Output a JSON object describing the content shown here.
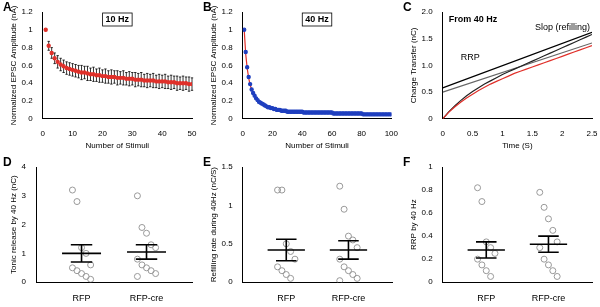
{
  "chart_data": [
    {
      "panel": "A",
      "type": "line",
      "title": "10 Hz",
      "x_label": "Number of Stimuli",
      "y_label": "Normalized EPSC Amplitude (nA)",
      "xlim": [
        0,
        50
      ],
      "xticks": [
        0,
        10,
        20,
        30,
        40,
        50
      ],
      "ylim": [
        0,
        1.2
      ],
      "yticks": [
        0,
        0.2,
        0.4,
        0.6,
        0.8,
        1,
        1.2
      ],
      "grid": false,
      "x": [
        1,
        2,
        3,
        4,
        5,
        6,
        7,
        8,
        9,
        10,
        11,
        12,
        13,
        14,
        15,
        16,
        17,
        18,
        19,
        20,
        21,
        22,
        23,
        24,
        25,
        26,
        27,
        28,
        29,
        30,
        31,
        32,
        33,
        34,
        35,
        36,
        37,
        38,
        39,
        40,
        41,
        42,
        43,
        44,
        45,
        46,
        47,
        48,
        49,
        50
      ],
      "series": [
        {
          "color": "#e0302a",
          "marker": "circle",
          "line_style": "none",
          "values": [
            1.0,
            0.82,
            0.74,
            0.68,
            0.64,
            0.61,
            0.59,
            0.57,
            0.56,
            0.55,
            0.54,
            0.53,
            0.52,
            0.52,
            0.51,
            0.5,
            0.5,
            0.49,
            0.49,
            0.48,
            0.48,
            0.47,
            0.47,
            0.47,
            0.46,
            0.46,
            0.46,
            0.45,
            0.45,
            0.45,
            0.44,
            0.44,
            0.44,
            0.43,
            0.43,
            0.43,
            0.43,
            0.42,
            0.42,
            0.42,
            0.42,
            0.41,
            0.41,
            0.41,
            0.4,
            0.4,
            0.4,
            0.4,
            0.39,
            0.39
          ],
          "errors": [
            0,
            0.05,
            0.06,
            0.06,
            0.07,
            0.07,
            0.07,
            0.07,
            0.07,
            0.07,
            0.07,
            0.07,
            0.08,
            0.07,
            0.08,
            0.07,
            0.08,
            0.07,
            0.08,
            0.07,
            0.08,
            0.07,
            0.08,
            0.07,
            0.08,
            0.07,
            0.08,
            0.07,
            0.08,
            0.07,
            0.08,
            0.07,
            0.08,
            0.07,
            0.08,
            0.07,
            0.08,
            0.07,
            0.08,
            0.07,
            0.08,
            0.07,
            0.08,
            0.07,
            0.08,
            0.07,
            0.08,
            0.07,
            0.08,
            0.07
          ]
        }
      ]
    },
    {
      "panel": "B",
      "type": "line",
      "title": "40 Hz",
      "x_label": "Number of Stimuli",
      "y_label": "Normalized EPSC Amplitude (nA)",
      "xlim": [
        0,
        100
      ],
      "xticks": [
        0,
        20,
        40,
        60,
        80,
        100
      ],
      "ylim": [
        0,
        1.2
      ],
      "yticks": [
        0,
        0.2,
        0.4,
        0.6,
        0.8,
        1,
        1.2
      ],
      "grid": false,
      "x": [
        1,
        2,
        3,
        4,
        5,
        6,
        7,
        8,
        9,
        10,
        11,
        12,
        13,
        14,
        15,
        16,
        17,
        18,
        19,
        20,
        21,
        22,
        23,
        24,
        25,
        26,
        27,
        28,
        29,
        30,
        31,
        32,
        33,
        34,
        35,
        36,
        37,
        38,
        39,
        40,
        41,
        42,
        43,
        44,
        45,
        46,
        47,
        48,
        49,
        50,
        51,
        52,
        53,
        54,
        55,
        56,
        57,
        58,
        59,
        60,
        61,
        62,
        63,
        64,
        65,
        66,
        67,
        68,
        69,
        70,
        71,
        72,
        73,
        74,
        75,
        76,
        77,
        78,
        79,
        80,
        81,
        82,
        83,
        84,
        85,
        86,
        87,
        88,
        89,
        90,
        91,
        92,
        93,
        94,
        95,
        96,
        97,
        98,
        99,
        100
      ],
      "series": [
        {
          "color": "#1f3fbf",
          "marker": "circle",
          "line_style": "none",
          "values": [
            1.0,
            0.75,
            0.58,
            0.47,
            0.39,
            0.33,
            0.29,
            0.26,
            0.23,
            0.21,
            0.19,
            0.18,
            0.17,
            0.16,
            0.15,
            0.14,
            0.13,
            0.13,
            0.12,
            0.12,
            0.11,
            0.11,
            0.1,
            0.1,
            0.1,
            0.09,
            0.09,
            0.09,
            0.09,
            0.08,
            0.08,
            0.08,
            0.08,
            0.08,
            0.08,
            0.08,
            0.08,
            0.08,
            0.08,
            0.08,
            0.07,
            0.07,
            0.07,
            0.07,
            0.07,
            0.07,
            0.07,
            0.07,
            0.07,
            0.07,
            0.07,
            0.07,
            0.07,
            0.07,
            0.07,
            0.07,
            0.07,
            0.07,
            0.07,
            0.07,
            0.06,
            0.06,
            0.06,
            0.06,
            0.06,
            0.06,
            0.06,
            0.06,
            0.06,
            0.06,
            0.06,
            0.06,
            0.06,
            0.06,
            0.06,
            0.06,
            0.06,
            0.06,
            0.06,
            0.06,
            0.05,
            0.05,
            0.05,
            0.05,
            0.05,
            0.05,
            0.05,
            0.05,
            0.05,
            0.05,
            0.05,
            0.05,
            0.05,
            0.05,
            0.05,
            0.05,
            0.05,
            0.05,
            0.05,
            0.05
          ]
        },
        {
          "color": "#e0302a",
          "marker": "none",
          "line_style": "solid",
          "values": [
            1.0,
            0.73,
            0.57,
            0.46,
            0.38,
            0.33,
            0.29,
            0.26,
            0.23,
            0.21,
            0.19,
            0.18,
            0.17,
            0.16,
            0.15,
            0.14,
            0.13,
            0.13,
            0.12,
            0.12,
            0.11,
            0.11,
            0.1,
            0.1,
            0.1,
            0.09,
            0.09,
            0.09,
            0.09,
            0.08,
            0.08,
            0.08,
            0.08,
            0.08,
            0.08,
            0.08,
            0.08,
            0.08,
            0.08,
            0.08,
            0.07,
            0.07,
            0.07,
            0.07,
            0.07,
            0.07,
            0.07,
            0.07,
            0.07,
            0.07,
            0.07,
            0.07,
            0.07,
            0.07,
            0.07,
            0.07,
            0.07,
            0.07,
            0.07,
            0.07,
            0.06,
            0.06,
            0.06,
            0.06,
            0.06,
            0.06,
            0.06,
            0.06,
            0.06,
            0.06,
            0.06,
            0.06,
            0.06,
            0.06,
            0.06,
            0.06,
            0.06,
            0.06,
            0.06,
            0.06,
            0.05,
            0.05,
            0.05,
            0.05,
            0.05,
            0.05,
            0.05,
            0.05,
            0.05,
            0.05,
            0.05,
            0.05,
            0.05,
            0.05,
            0.05,
            0.05,
            0.05,
            0.05,
            0.05,
            0.05
          ]
        }
      ]
    },
    {
      "panel": "C",
      "type": "line",
      "title": "From 40 Hz",
      "x_label": "Time (S)",
      "y_label": "Charge Transfer (nC)",
      "annotations": [
        "RRP",
        "Slop (refilling)"
      ],
      "xlim": [
        0,
        2.5
      ],
      "xticks": [
        0,
        0.5,
        1,
        1.5,
        2,
        2.5
      ],
      "ylim": [
        0,
        2
      ],
      "yticks": [
        0,
        0.5,
        {
          "value": 1,
          "label": "1.0"
        },
        1.5,
        {
          "value": 2,
          "label": "2.0"
        }
      ],
      "grid": false,
      "series": [
        {
          "color": "#e0302a",
          "marker": "none",
          "line_style": "solid",
          "x": [
            0,
            0.1,
            0.2,
            0.3,
            0.4,
            0.5,
            0.6,
            0.7,
            0.8,
            0.9,
            1.0,
            1.1,
            1.2,
            1.3,
            1.4,
            1.5,
            1.6,
            1.7,
            1.8,
            1.9,
            2.0,
            2.1,
            2.2,
            2.3,
            2.4,
            2.5
          ],
          "values": [
            0,
            0.12,
            0.22,
            0.31,
            0.39,
            0.46,
            0.53,
            0.59,
            0.65,
            0.7,
            0.75,
            0.8,
            0.85,
            0.89,
            0.93,
            0.97,
            1.01,
            1.05,
            1.09,
            1.13,
            1.17,
            1.21,
            1.25,
            1.29,
            1.33,
            1.37
          ]
        },
        {
          "color": "#222222",
          "marker": "none",
          "line_style": "solid",
          "x": [
            0,
            0.1,
            0.2,
            0.3,
            0.4,
            0.5,
            0.6,
            0.7,
            0.8,
            0.9,
            1.0,
            1.1,
            1.2,
            1.3,
            1.4,
            1.5,
            1.6,
            1.7,
            1.8,
            1.9,
            2.0,
            2.1,
            2.2,
            2.3,
            2.4,
            2.5
          ],
          "values": [
            0,
            0.13,
            0.24,
            0.34,
            0.43,
            0.51,
            0.58,
            0.65,
            0.71,
            0.77,
            0.83,
            0.88,
            0.93,
            0.98,
            1.03,
            1.08,
            1.13,
            1.18,
            1.23,
            1.28,
            1.33,
            1.38,
            1.43,
            1.48,
            1.53,
            1.58
          ]
        },
        {
          "color": "#000000",
          "marker": "none",
          "line_style": "solid",
          "x": [
            0,
            2.5
          ],
          "values": [
            0.58,
            1.62
          ]
        },
        {
          "color": "#666666",
          "marker": "none",
          "line_style": "solid",
          "x": [
            0,
            2.5
          ],
          "values": [
            0.5,
            1.42
          ]
        }
      ]
    },
    {
      "panel": "D",
      "type": "scatter",
      "y_label": "Tonic release by 40 Hz (nC)",
      "categories": [
        "RFP",
        "RFP-cre"
      ],
      "ylim": [
        0,
        4
      ],
      "yticks": [
        0,
        1,
        2,
        3,
        4
      ],
      "grid": false,
      "color": "#999999",
      "marker": "circle",
      "values": [
        [
          3.2,
          2.8,
          1.2,
          1.0,
          0.6,
          0.5,
          0.4,
          0.3,
          0.2,
          0.1
        ],
        [
          3.0,
          1.9,
          1.7,
          1.3,
          1.2,
          0.8,
          0.6,
          0.5,
          0.4,
          0.3,
          0.2
        ]
      ],
      "mean": [
        1.0,
        1.05
      ],
      "sem": [
        0.3,
        0.25
      ]
    },
    {
      "panel": "E",
      "type": "scatter",
      "y_label": "Refilling rate during 40Hz (nC/S)",
      "categories": [
        "RFP",
        "RFP-cre"
      ],
      "ylim": [
        0,
        1.5
      ],
      "yticks": [
        0,
        0.5,
        1,
        1.5
      ],
      "grid": false,
      "color": "#999999",
      "marker": "circle",
      "values": [
        [
          1.2,
          1.2,
          0.5,
          0.4,
          0.3,
          0.2,
          0.15,
          0.1,
          0.05
        ],
        [
          1.25,
          0.95,
          0.6,
          0.55,
          0.45,
          0.3,
          0.2,
          0.15,
          0.1,
          0.05,
          0.02
        ]
      ],
      "mean": [
        0.42,
        0.42
      ],
      "sem": [
        0.14,
        0.12
      ]
    },
    {
      "panel": "F",
      "type": "scatter",
      "y_label": "RRP by 40 Hz",
      "categories": [
        "RFP",
        "RFP-cre"
      ],
      "ylim": [
        0,
        1
      ],
      "yticks": [
        0,
        0.2,
        0.4,
        0.6,
        0.8,
        1
      ],
      "grid": false,
      "color": "#999999",
      "marker": "circle",
      "values": [
        [
          0.82,
          0.7,
          0.35,
          0.3,
          0.25,
          0.2,
          0.15,
          0.1,
          0.05
        ],
        [
          0.78,
          0.65,
          0.55,
          0.45,
          0.35,
          0.3,
          0.2,
          0.15,
          0.1,
          0.05
        ]
      ],
      "mean": [
        0.28,
        0.33
      ],
      "sem": [
        0.07,
        0.07
      ]
    }
  ]
}
